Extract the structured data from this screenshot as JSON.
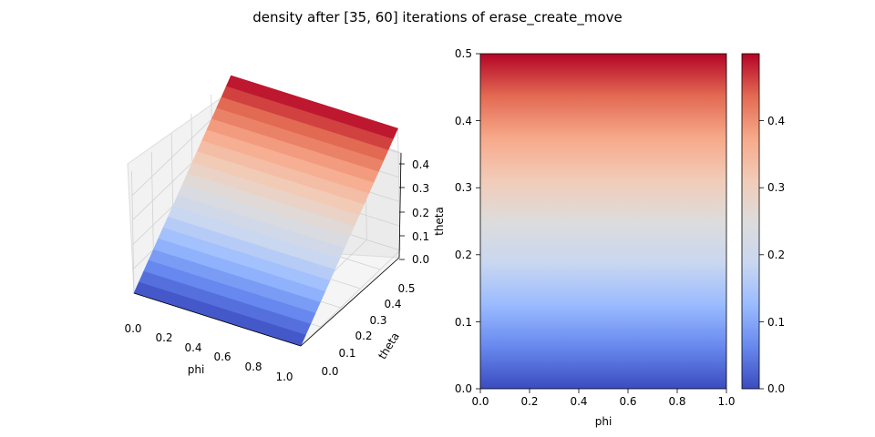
{
  "figure": {
    "title": "density after [35, 60] iterations of erase_create_move"
  },
  "colors": {
    "colormap": "coolwarm",
    "coolwarm_stops": [
      "#3b4cc0",
      "#6788ee",
      "#9abbff",
      "#c9d7f0",
      "#dddcdc",
      "#f2cbb7",
      "#f7a889",
      "#e26952",
      "#b40426"
    ]
  },
  "chart_data": [
    {
      "type": "surface3d",
      "xlabel": "phi",
      "ylabel": "theta",
      "zlabel": "",
      "xlim": [
        0.0,
        1.0
      ],
      "ylim": [
        0.0,
        0.5
      ],
      "zlim": [
        0.0,
        0.5
      ],
      "x_ticks": [
        "0.0",
        "0.2",
        "0.4",
        "0.6",
        "0.8",
        "1.0"
      ],
      "y_ticks": [
        "0.0",
        "0.1",
        "0.2",
        "0.3",
        "0.4",
        "0.5"
      ],
      "z_ticks": [
        "0.0",
        "0.1",
        "0.2",
        "0.3",
        "0.4"
      ],
      "surface": "density = theta (constant along phi)",
      "theta_values": [
        0.0,
        0.025,
        0.05,
        0.075,
        0.1,
        0.125,
        0.15,
        0.175,
        0.2,
        0.225,
        0.25,
        0.275,
        0.3,
        0.325,
        0.35,
        0.375,
        0.4,
        0.425,
        0.45,
        0.475,
        0.5
      ],
      "density_values": [
        0.0,
        0.025,
        0.05,
        0.075,
        0.1,
        0.125,
        0.15,
        0.175,
        0.2,
        0.225,
        0.25,
        0.275,
        0.3,
        0.325,
        0.35,
        0.375,
        0.4,
        0.425,
        0.45,
        0.475,
        0.5
      ],
      "grid": true
    },
    {
      "type": "heatmap",
      "xlabel": "phi",
      "ylabel": "theta",
      "xlim": [
        0.0,
        1.0
      ],
      "ylim": [
        0.0,
        0.5
      ],
      "x_ticks": [
        "0.0",
        "0.2",
        "0.4",
        "0.6",
        "0.8",
        "1.0"
      ],
      "y_ticks": [
        "0.0",
        "0.1",
        "0.2",
        "0.3",
        "0.4",
        "0.5"
      ],
      "value_range": [
        0.0,
        0.5
      ],
      "values": "density = theta (horizontal bands, constant along phi)",
      "colorbar": {
        "ticks": [
          "0.0",
          "0.1",
          "0.2",
          "0.3",
          "0.4"
        ],
        "range": [
          0.0,
          0.5
        ]
      }
    }
  ]
}
